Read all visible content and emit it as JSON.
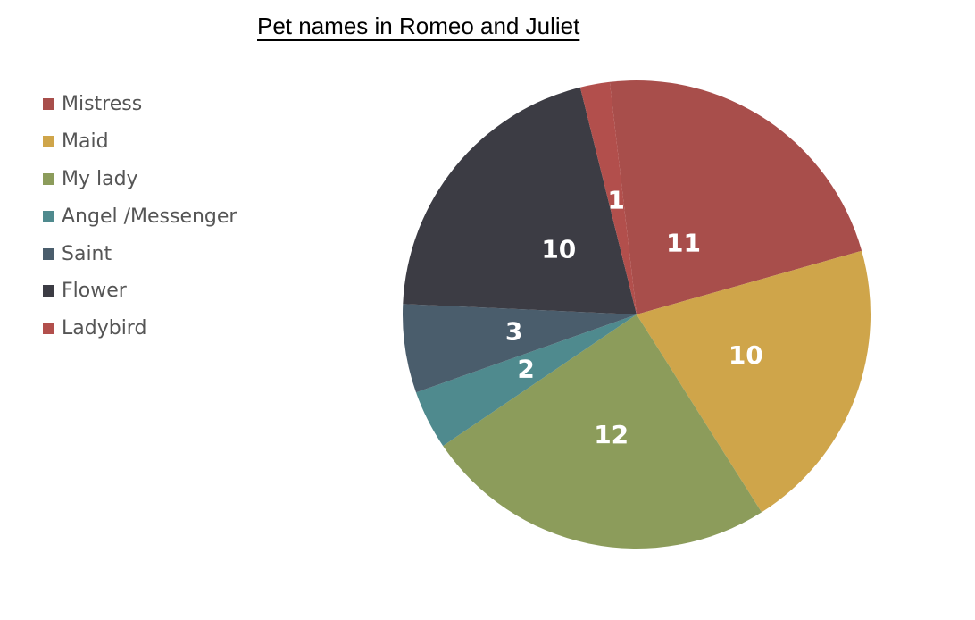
{
  "chart_data": {
    "type": "pie",
    "title": "Pet names in Romeo and Juliet",
    "legend_position": "left",
    "categories": [
      "Mistress",
      "Maid",
      "My lady",
      "Angel /Messenger",
      "Saint",
      "Flower",
      "Ladybird"
    ],
    "values": [
      11,
      10,
      12,
      2,
      3,
      10,
      1
    ],
    "data_labels": [
      "11",
      "10",
      "12",
      "2",
      "3",
      "10",
      "1"
    ],
    "colors": [
      "#a84e4b",
      "#cfa54a",
      "#8c9c5b",
      "#4f8a8e",
      "#4a5d6c",
      "#3c3c44",
      "#b24f4c"
    ]
  }
}
